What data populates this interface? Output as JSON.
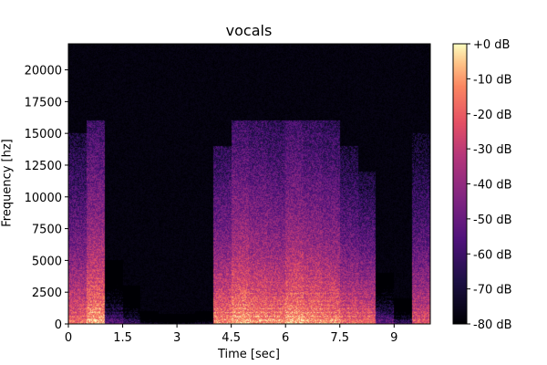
{
  "chart_data": {
    "type": "heatmap",
    "title": "vocals",
    "xlabel": "Time [sec]",
    "ylabel": "Frequency [hz]",
    "xlim": [
      0,
      10
    ],
    "ylim": [
      0,
      22050
    ],
    "xticks": [
      0,
      1.5,
      3,
      4.5,
      6,
      7.5,
      9
    ],
    "xtick_labels": [
      "0",
      "1.5",
      "3",
      "4.5",
      "6",
      "7.5",
      "9"
    ],
    "yticks": [
      0,
      2500,
      5000,
      7500,
      10000,
      12500,
      15000,
      17500,
      20000
    ],
    "ytick_labels": [
      "0",
      "2500",
      "5000",
      "7500",
      "10000",
      "12500",
      "15000",
      "17500",
      "20000"
    ],
    "colormap": "magma",
    "colorbar": {
      "range_db": [
        -80,
        0
      ],
      "ticks": [
        0,
        -10,
        -20,
        -30,
        -40,
        -50,
        -60,
        -70,
        -80
      ],
      "tick_labels": [
        "+0 dB",
        "-10 dB",
        "-20 dB",
        "-30 dB",
        "-40 dB",
        "-50 dB",
        "-60 dB",
        "-70 dB",
        "-80 dB"
      ]
    },
    "time_bins_sec": [
      [
        0,
        0.5
      ],
      [
        0.5,
        1
      ],
      [
        1,
        1.5
      ],
      [
        1.5,
        2
      ],
      [
        2,
        2.5
      ],
      [
        2.5,
        3
      ],
      [
        3,
        3.5
      ],
      [
        3.5,
        4
      ],
      [
        4,
        4.5
      ],
      [
        4.5,
        5
      ],
      [
        5,
        5.5
      ],
      [
        5.5,
        6
      ],
      [
        6,
        6.5
      ],
      [
        6.5,
        7
      ],
      [
        7,
        7.5
      ],
      [
        7.5,
        8
      ],
      [
        8,
        8.5
      ],
      [
        8.5,
        9
      ],
      [
        9,
        9.5
      ],
      [
        9.5,
        10
      ]
    ],
    "low_freq_peak_db": [
      -15,
      -5,
      -50,
      -55,
      -65,
      -70,
      -70,
      -65,
      -10,
      -5,
      -8,
      -10,
      -5,
      -8,
      -10,
      -15,
      -15,
      -45,
      -55,
      -20
    ],
    "max_freq_extent_hz": [
      15000,
      16000,
      5000,
      3000,
      1000,
      800,
      800,
      1000,
      14000,
      16000,
      16000,
      16000,
      16000,
      16000,
      16000,
      14000,
      12000,
      4000,
      2000,
      15000
    ]
  }
}
